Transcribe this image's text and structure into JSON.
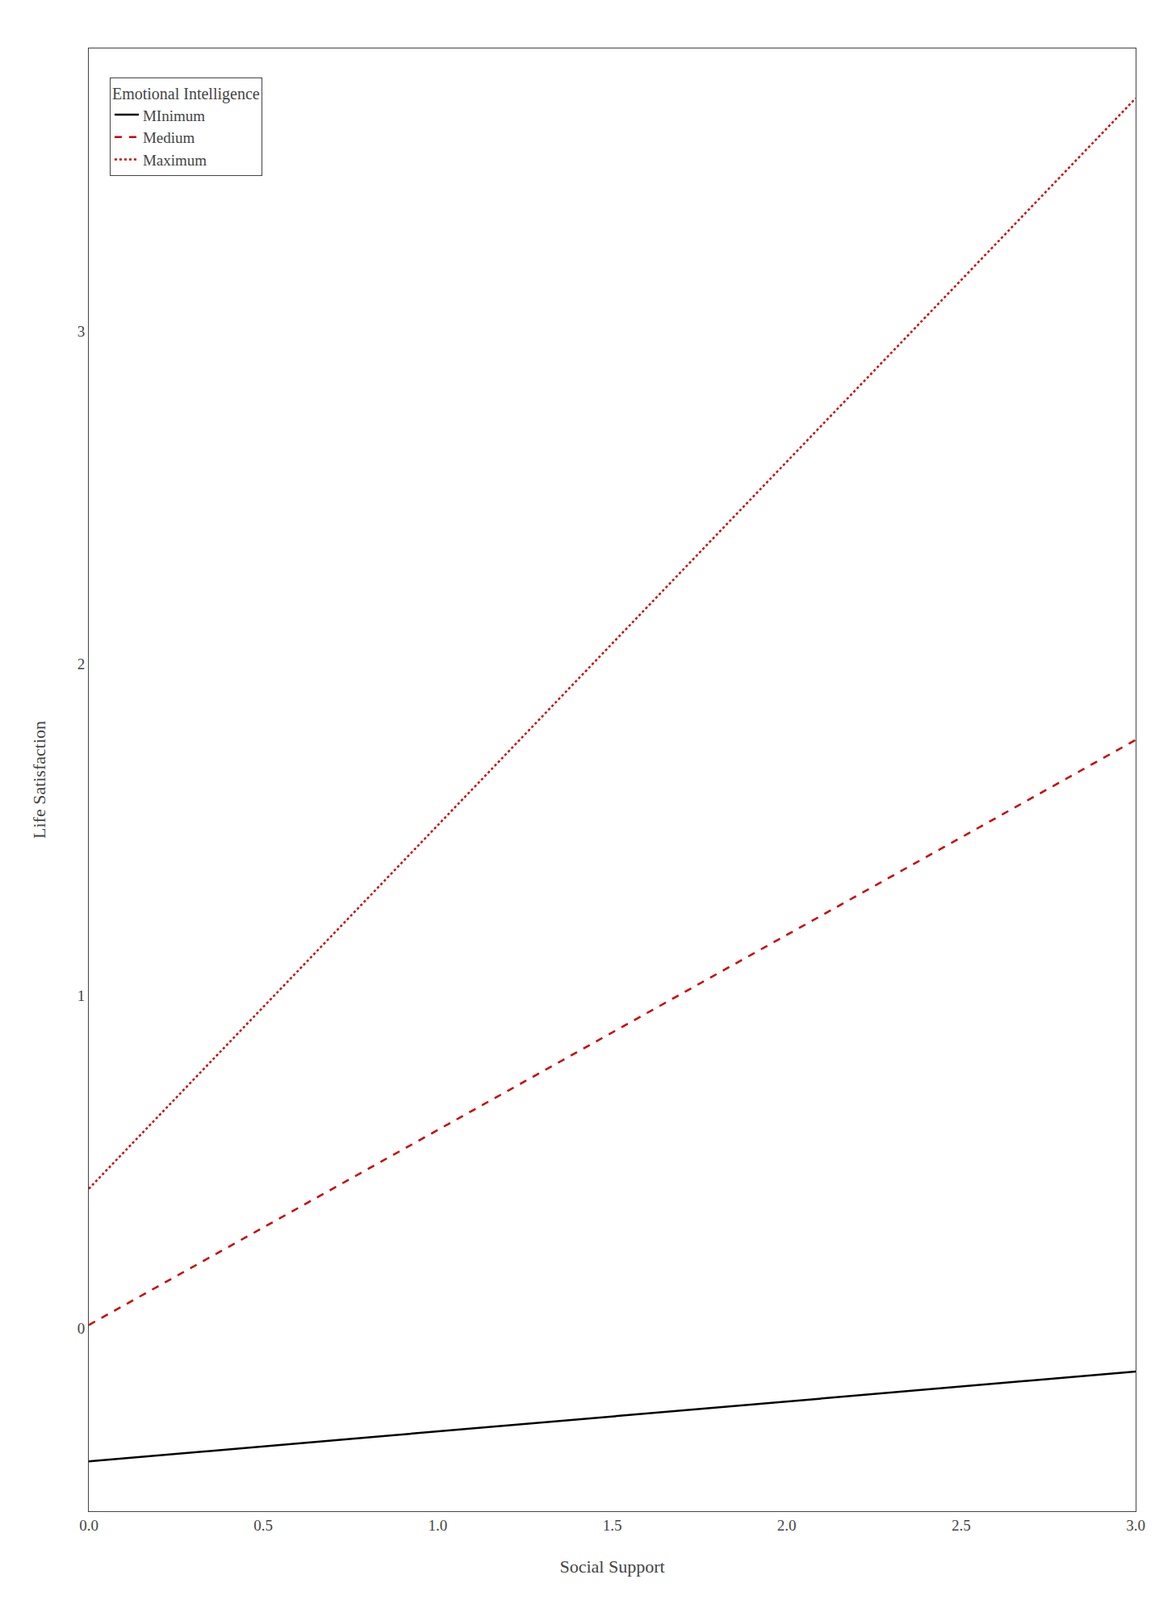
{
  "chart_data": {
    "type": "line",
    "xlabel": "Social Support",
    "ylabel": "Life Satisfaction",
    "x": [
      0.0,
      3.0
    ],
    "series": [
      {
        "name": "MInimum",
        "color": "#000000",
        "line_style": "solid",
        "values": [
          -0.4,
          -0.13
        ]
      },
      {
        "name": "Medium",
        "color": "#cc0000",
        "line_style": "dashed",
        "values": [
          0.01,
          1.77
        ]
      },
      {
        "name": "Maximum",
        "color": "#cc0000",
        "line_style": "dotted",
        "values": [
          0.42,
          3.7
        ]
      }
    ],
    "xlim": [
      0.0,
      3.0
    ],
    "ylim": [
      -0.55,
      3.85
    ],
    "xticks": [
      {
        "value": 0.0,
        "label": "0.0"
      },
      0.5,
      {
        "value": 1.0,
        "label": "1.0"
      },
      1.5,
      {
        "value": 2.0,
        "label": "2.0"
      },
      2.5,
      {
        "value": 3.0,
        "label": "3.0"
      }
    ],
    "yticks": [
      0,
      1,
      2,
      3
    ],
    "legend_title": "Emotional Intelligence",
    "legend": "upper left",
    "grid": false
  }
}
